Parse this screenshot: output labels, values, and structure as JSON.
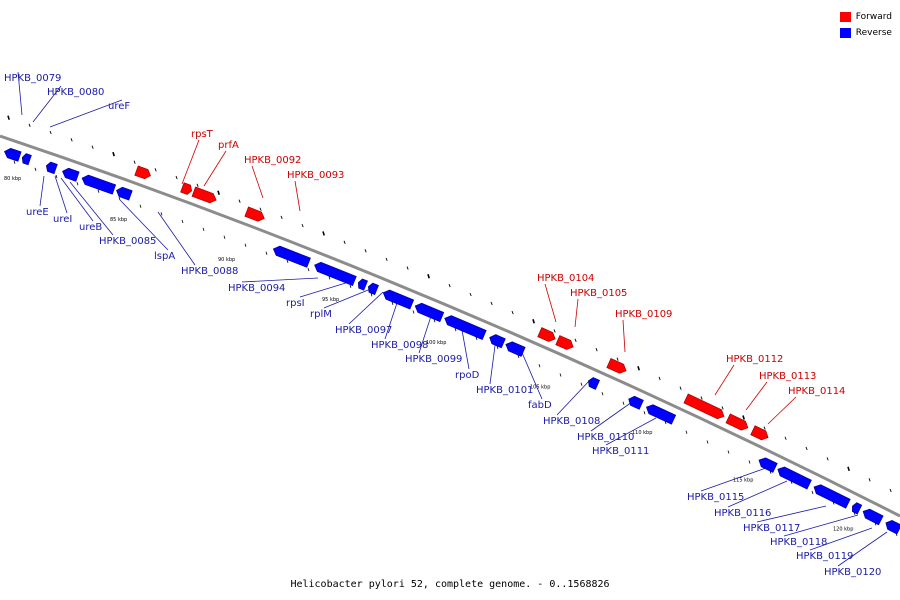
{
  "colors": {
    "forward": "#ff0000",
    "reverse": "#0000ff",
    "backbone": "#8c8c8c"
  },
  "legend": [
    {
      "label": "Forward",
      "strand": "forward"
    },
    {
      "label": "Reverse",
      "strand": "reverse"
    }
  ],
  "caption": "Helicobacter pylori 52, complete genome. - 0..1568826",
  "scale_labels": [
    "80 kbp",
    "85 kbp",
    "90 kbp",
    "95 kbp",
    "100 kbp",
    "105 kbp",
    "110 kbp",
    "115 kbp",
    "120 kbp"
  ],
  "genes": [
    {
      "name": "HPKB_0079",
      "strand": "reverse"
    },
    {
      "name": "HPKB_0080",
      "strand": "reverse"
    },
    {
      "name": "ureF",
      "strand": "reverse"
    },
    {
      "name": "ureE",
      "strand": "reverse"
    },
    {
      "name": "ureI",
      "strand": "reverse"
    },
    {
      "name": "ureB",
      "strand": "reverse"
    },
    {
      "name": "HPKB_0085",
      "strand": "reverse"
    },
    {
      "name": "lspA",
      "strand": "reverse"
    },
    {
      "name": "HPKB_0088",
      "strand": "reverse"
    },
    {
      "name": "rpsT",
      "strand": "forward"
    },
    {
      "name": "prfA",
      "strand": "forward"
    },
    {
      "name": "HPKB_0092",
      "strand": "forward"
    },
    {
      "name": "HPKB_0093",
      "strand": "forward"
    },
    {
      "name": "HPKB_0094",
      "strand": "reverse"
    },
    {
      "name": "rpsI",
      "strand": "reverse"
    },
    {
      "name": "rplM",
      "strand": "reverse"
    },
    {
      "name": "HPKB_0097",
      "strand": "reverse"
    },
    {
      "name": "HPKB_0098",
      "strand": "reverse"
    },
    {
      "name": "HPKB_0099",
      "strand": "reverse"
    },
    {
      "name": "rpoD",
      "strand": "reverse"
    },
    {
      "name": "HPKB_0101",
      "strand": "reverse"
    },
    {
      "name": "fabD",
      "strand": "reverse"
    },
    {
      "name": "HPKB_0104",
      "strand": "forward"
    },
    {
      "name": "HPKB_0105",
      "strand": "forward"
    },
    {
      "name": "HPKB_0109",
      "strand": "forward"
    },
    {
      "name": "HPKB_0108",
      "strand": "reverse"
    },
    {
      "name": "HPKB_0110",
      "strand": "reverse"
    },
    {
      "name": "HPKB_0111",
      "strand": "reverse"
    },
    {
      "name": "HPKB_0112",
      "strand": "forward"
    },
    {
      "name": "HPKB_0113",
      "strand": "forward"
    },
    {
      "name": "HPKB_0114",
      "strand": "forward"
    },
    {
      "name": "HPKB_0115",
      "strand": "reverse"
    },
    {
      "name": "HPKB_0116",
      "strand": "reverse"
    },
    {
      "name": "HPKB_0117",
      "strand": "reverse"
    },
    {
      "name": "HPKB_0118",
      "strand": "reverse"
    },
    {
      "name": "HPKB_0119",
      "strand": "reverse"
    },
    {
      "name": "HPKB_0120",
      "strand": "reverse"
    }
  ]
}
